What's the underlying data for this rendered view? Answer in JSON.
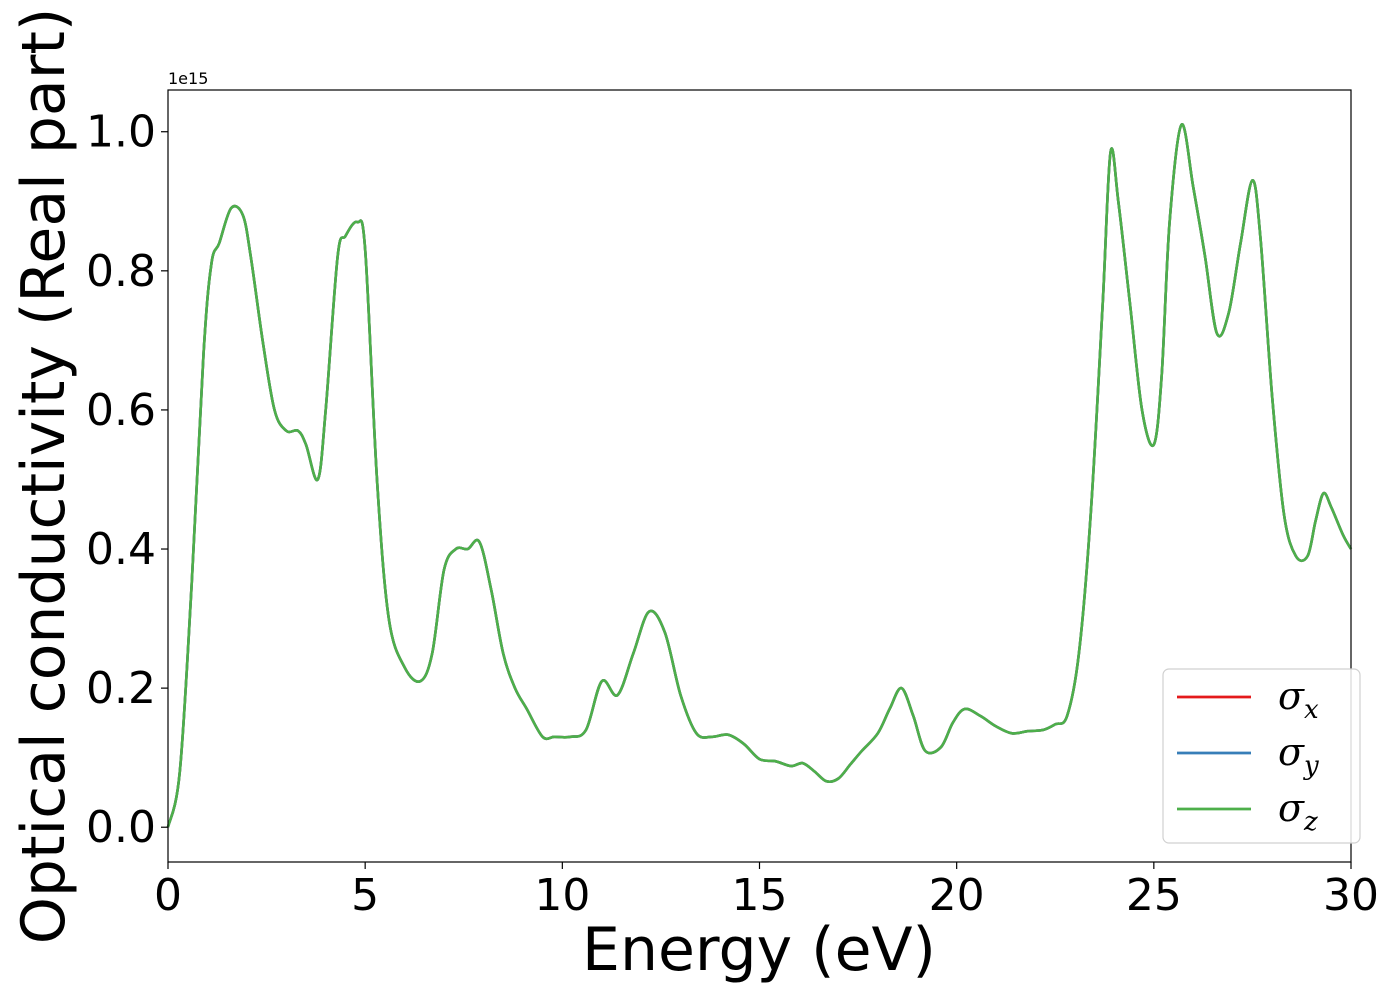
{
  "chart_data": {
    "type": "line",
    "title": "",
    "xlabel": "Energy (eV)",
    "ylabel": "Optical conductivity (Real part)",
    "y_offset_label": "1e15",
    "xlim": [
      0,
      30
    ],
    "ylim": [
      -0.05,
      1.06
    ],
    "xticks": [
      0,
      5,
      10,
      15,
      20,
      25,
      30
    ],
    "xtick_labels": [
      "0",
      "5",
      "10",
      "15",
      "20",
      "25",
      "30"
    ],
    "yticks": [
      0.0,
      0.2,
      0.4,
      0.6,
      0.8,
      1.0
    ],
    "ytick_labels": [
      "0.0",
      "0.2",
      "0.4",
      "0.6",
      "0.8",
      "1.0"
    ],
    "grid": false,
    "legend_position": "bottom-right",
    "x": [
      0,
      0.3,
      0.6,
      0.9,
      1.1,
      1.3,
      1.6,
      1.9,
      2.1,
      2.4,
      2.7,
      3.0,
      3.3,
      3.5,
      3.8,
      4.0,
      4.3,
      4.5,
      4.8,
      5.0,
      5.3,
      5.6,
      6.0,
      6.4,
      6.7,
      7.0,
      7.3,
      7.6,
      7.9,
      8.2,
      8.5,
      8.8,
      9.1,
      9.5,
      9.8,
      10.2,
      10.6,
      11.0,
      11.4,
      11.8,
      12.2,
      12.6,
      13.0,
      13.4,
      13.8,
      14.2,
      14.6,
      15.0,
      15.4,
      15.8,
      16.1,
      16.4,
      16.7,
      17.0,
      17.3,
      17.6,
      18.0,
      18.3,
      18.6,
      18.9,
      19.2,
      19.6,
      19.9,
      20.2,
      20.6,
      21.0,
      21.4,
      21.8,
      22.2,
      22.5,
      22.8,
      23.1,
      23.4,
      23.7,
      23.9,
      24.1,
      24.4,
      24.7,
      25.0,
      25.2,
      25.4,
      25.7,
      26.0,
      26.3,
      26.6,
      26.9,
      27.2,
      27.5,
      27.7,
      28.0,
      28.3,
      28.6,
      28.9,
      29.1,
      29.3,
      29.5,
      29.8,
      30.0
    ],
    "series": [
      {
        "name": "σ_x",
        "color": "#e41a1c",
        "values": [
          0.0,
          0.08,
          0.35,
          0.68,
          0.81,
          0.84,
          0.89,
          0.88,
          0.82,
          0.7,
          0.6,
          0.57,
          0.57,
          0.55,
          0.5,
          0.6,
          0.82,
          0.85,
          0.87,
          0.83,
          0.5,
          0.3,
          0.23,
          0.21,
          0.25,
          0.37,
          0.4,
          0.4,
          0.41,
          0.34,
          0.25,
          0.2,
          0.17,
          0.13,
          0.13,
          0.13,
          0.14,
          0.21,
          0.19,
          0.25,
          0.31,
          0.28,
          0.19,
          0.135,
          0.13,
          0.133,
          0.12,
          0.098,
          0.095,
          0.088,
          0.092,
          0.08,
          0.066,
          0.07,
          0.09,
          0.11,
          0.135,
          0.17,
          0.2,
          0.16,
          0.11,
          0.115,
          0.15,
          0.17,
          0.16,
          0.145,
          0.135,
          0.138,
          0.14,
          0.148,
          0.16,
          0.25,
          0.45,
          0.75,
          0.97,
          0.9,
          0.75,
          0.6,
          0.55,
          0.65,
          0.87,
          1.01,
          0.92,
          0.82,
          0.71,
          0.74,
          0.84,
          0.93,
          0.85,
          0.62,
          0.45,
          0.39,
          0.39,
          0.44,
          0.48,
          0.46,
          0.42,
          0.4
        ]
      },
      {
        "name": "σ_y",
        "color": "#377eb8",
        "values": [
          0.0,
          0.08,
          0.35,
          0.68,
          0.81,
          0.84,
          0.89,
          0.88,
          0.82,
          0.7,
          0.6,
          0.57,
          0.57,
          0.55,
          0.5,
          0.6,
          0.82,
          0.85,
          0.87,
          0.83,
          0.5,
          0.3,
          0.23,
          0.21,
          0.25,
          0.37,
          0.4,
          0.4,
          0.41,
          0.34,
          0.25,
          0.2,
          0.17,
          0.13,
          0.13,
          0.13,
          0.14,
          0.21,
          0.19,
          0.25,
          0.31,
          0.28,
          0.19,
          0.135,
          0.13,
          0.133,
          0.12,
          0.098,
          0.095,
          0.088,
          0.092,
          0.08,
          0.066,
          0.07,
          0.09,
          0.11,
          0.135,
          0.17,
          0.2,
          0.16,
          0.11,
          0.115,
          0.15,
          0.17,
          0.16,
          0.145,
          0.135,
          0.138,
          0.14,
          0.148,
          0.16,
          0.25,
          0.45,
          0.75,
          0.97,
          0.9,
          0.75,
          0.6,
          0.55,
          0.65,
          0.87,
          1.01,
          0.92,
          0.82,
          0.71,
          0.74,
          0.84,
          0.93,
          0.85,
          0.62,
          0.45,
          0.39,
          0.39,
          0.44,
          0.48,
          0.46,
          0.42,
          0.4
        ]
      },
      {
        "name": "σ_z",
        "color": "#4daf4a",
        "values": [
          0.0,
          0.08,
          0.35,
          0.68,
          0.81,
          0.84,
          0.89,
          0.88,
          0.82,
          0.7,
          0.6,
          0.57,
          0.57,
          0.55,
          0.5,
          0.6,
          0.82,
          0.85,
          0.87,
          0.83,
          0.5,
          0.3,
          0.23,
          0.21,
          0.25,
          0.37,
          0.4,
          0.4,
          0.41,
          0.34,
          0.25,
          0.2,
          0.17,
          0.13,
          0.13,
          0.13,
          0.14,
          0.21,
          0.19,
          0.25,
          0.31,
          0.28,
          0.19,
          0.135,
          0.13,
          0.133,
          0.12,
          0.098,
          0.095,
          0.088,
          0.092,
          0.08,
          0.066,
          0.07,
          0.09,
          0.11,
          0.135,
          0.17,
          0.2,
          0.16,
          0.11,
          0.115,
          0.15,
          0.17,
          0.16,
          0.145,
          0.135,
          0.138,
          0.14,
          0.148,
          0.16,
          0.25,
          0.45,
          0.75,
          0.97,
          0.9,
          0.75,
          0.6,
          0.55,
          0.65,
          0.87,
          1.01,
          0.92,
          0.82,
          0.71,
          0.74,
          0.84,
          0.93,
          0.85,
          0.62,
          0.45,
          0.39,
          0.39,
          0.44,
          0.48,
          0.46,
          0.42,
          0.4
        ]
      }
    ],
    "legend": [
      {
        "symbol": "σ",
        "subscript": "x",
        "color": "#e41a1c"
      },
      {
        "symbol": "σ",
        "subscript": "y",
        "color": "#377eb8"
      },
      {
        "symbol": "σ",
        "subscript": "z",
        "color": "#4daf4a"
      }
    ]
  }
}
